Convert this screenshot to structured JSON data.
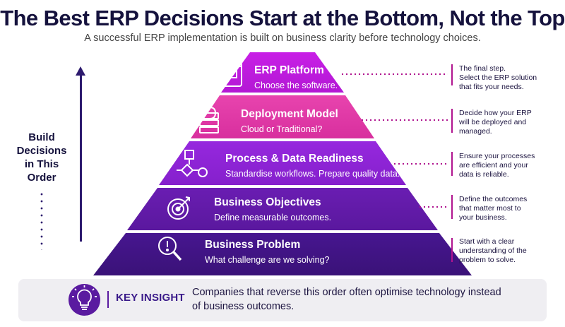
{
  "header": {
    "title": "The Best ERP Decisions Start at the Bottom, Not the Top",
    "subtitle": "A successful ERP implementation is built on business clarity before technology choices."
  },
  "side_label": {
    "text_lines": [
      "Build",
      "Decisions",
      "in This",
      "Order"
    ]
  },
  "tiers": [
    {
      "name": "ERP Platform",
      "desc": "Choose the software.",
      "icon": "browser-window-icon",
      "note_lines": [
        "The final step.",
        "Select the ERP solution",
        "that fits your needs."
      ],
      "color": "#c21ee0"
    },
    {
      "name": "Deployment Model",
      "desc": "Cloud or Traditional?",
      "icon": "cloud-server-icon",
      "note_lines": [
        "Decide how your ERP",
        "will be deployed and",
        "managed."
      ],
      "color": "#e23aa8"
    },
    {
      "name": "Process & Data Readiness",
      "desc": "Standardise workflows. Prepare quality data.",
      "icon": "flowchart-icon",
      "note_lines": [
        "Ensure your processes",
        "are efficient and your",
        "data is reliable."
      ],
      "color": "#8a22d6"
    },
    {
      "name": "Business Objectives",
      "desc": "Define measurable outcomes.",
      "icon": "target-icon",
      "note_lines": [
        "Define the outcomes",
        "that matter most to",
        "your business."
      ],
      "color": "#5f1aa6"
    },
    {
      "name": "Business Problem",
      "desc": "What challenge are we solving?",
      "icon": "magnifier-alert-icon",
      "note_lines": [
        "Start with a clear",
        "understanding of the",
        "problem to solve."
      ],
      "color": "#3f1484"
    }
  ],
  "insight": {
    "label": "KEY INSIGHT",
    "text": "Companies that reverse this order often optimise technology instead of business outcomes.",
    "icon": "lightbulb-icon"
  }
}
